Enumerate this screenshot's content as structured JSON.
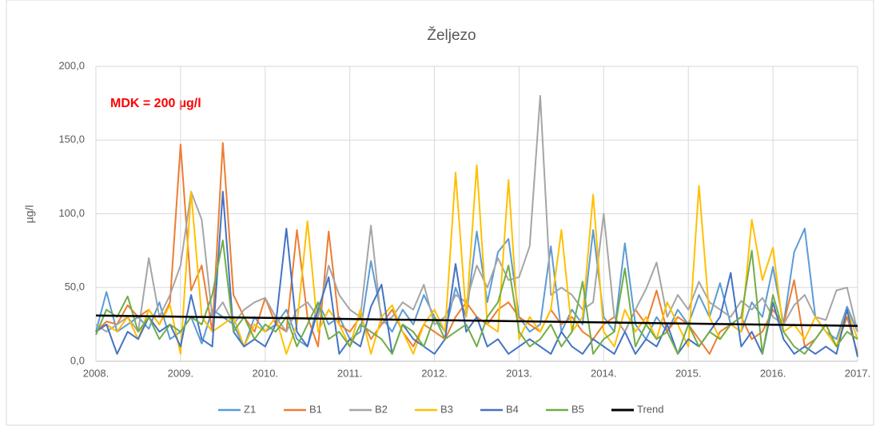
{
  "chart_data": {
    "type": "line",
    "title": "Željezo",
    "y_label": "µg/l",
    "annotation": "MDK = 200 µg/l",
    "grid": true,
    "legend": "bottom",
    "xlim": [
      2008,
      2017
    ],
    "xticks": [
      {
        "value": 2008,
        "label": "2008."
      },
      {
        "value": 2009,
        "label": "2009."
      },
      {
        "value": 2010,
        "label": "2010."
      },
      {
        "value": 2011,
        "label": "2011."
      },
      {
        "value": 2012,
        "label": "2012."
      },
      {
        "value": 2013,
        "label": "2013."
      },
      {
        "value": 2014,
        "label": "2014."
      },
      {
        "value": 2015,
        "label": "2015."
      },
      {
        "value": 2016,
        "label": "2016."
      },
      {
        "value": 2017,
        "label": "2017."
      }
    ],
    "ylim": [
      0,
      200
    ],
    "yticks": [
      {
        "value": 0,
        "label": "0,0"
      },
      {
        "value": 50,
        "label": "50,0"
      },
      {
        "value": 100,
        "label": "100,0"
      },
      {
        "value": 150,
        "label": "150,0"
      },
      {
        "value": 200,
        "label": "200,0"
      }
    ],
    "x": [
      2008,
      2008.125,
      2008.25,
      2008.375,
      2008.5,
      2008.625,
      2008.75,
      2008.875,
      2009,
      2009.125,
      2009.25,
      2009.375,
      2009.5,
      2009.625,
      2009.75,
      2009.875,
      2010,
      2010.125,
      2010.25,
      2010.375,
      2010.5,
      2010.625,
      2010.75,
      2010.875,
      2011,
      2011.125,
      2011.25,
      2011.375,
      2011.5,
      2011.625,
      2011.75,
      2011.875,
      2012,
      2012.125,
      2012.25,
      2012.375,
      2012.5,
      2012.625,
      2012.75,
      2012.875,
      2013,
      2013.125,
      2013.25,
      2013.375,
      2013.5,
      2013.625,
      2013.75,
      2013.875,
      2014,
      2014.125,
      2014.25,
      2014.375,
      2014.5,
      2014.625,
      2014.75,
      2014.875,
      2015,
      2015.125,
      2015.25,
      2015.375,
      2015.5,
      2015.625,
      2015.75,
      2015.875,
      2016,
      2016.125,
      2016.25,
      2016.375,
      2016.5,
      2016.625,
      2016.75,
      2016.875,
      2017
    ],
    "series": [
      {
        "name": "Z1",
        "color": "#5b9bd5",
        "values": [
          20,
          47,
          20,
          25,
          30,
          22,
          40,
          15,
          20,
          30,
          12,
          35,
          30,
          25,
          10,
          30,
          20,
          25,
          35,
          15,
          10,
          40,
          25,
          30,
          15,
          20,
          68,
          30,
          20,
          35,
          25,
          45,
          30,
          20,
          50,
          30,
          88,
          40,
          74,
          83,
          30,
          20,
          25,
          78,
          20,
          35,
          25,
          89,
          30,
          20,
          80,
          25,
          15,
          30,
          20,
          35,
          25,
          45,
          30,
          53,
          25,
          20,
          40,
          30,
          64,
          25,
          74,
          90,
          30,
          20,
          15,
          37,
          20
        ]
      },
      {
        "name": "B1",
        "color": "#ed7d31",
        "values": [
          20,
          27,
          25,
          38,
          30,
          35,
          25,
          40,
          147,
          48,
          65,
          20,
          148,
          45,
          30,
          20,
          43,
          25,
          20,
          89,
          30,
          10,
          88,
          25,
          20,
          30,
          15,
          25,
          35,
          20,
          10,
          25,
          20,
          15,
          30,
          40,
          30,
          25,
          35,
          40,
          30,
          25,
          20,
          35,
          25,
          30,
          20,
          15,
          25,
          30,
          20,
          35,
          25,
          48,
          20,
          30,
          25,
          15,
          5,
          20,
          25,
          30,
          15,
          20,
          35,
          25,
          55,
          10,
          15,
          25,
          10,
          30,
          5
        ]
      },
      {
        "name": "B2",
        "color": "#a5a5a5",
        "values": [
          25,
          20,
          25,
          30,
          20,
          70,
          30,
          45,
          65,
          115,
          96,
          30,
          40,
          25,
          35,
          40,
          43,
          30,
          20,
          35,
          40,
          30,
          65,
          45,
          35,
          30,
          92,
          25,
          30,
          40,
          35,
          52,
          25,
          30,
          45,
          40,
          65,
          50,
          70,
          55,
          57,
          78,
          180,
          45,
          50,
          45,
          35,
          40,
          100,
          30,
          20,
          35,
          49,
          67,
          30,
          45,
          35,
          54,
          40,
          35,
          30,
          41,
          35,
          43,
          30,
          25,
          38,
          45,
          30,
          28,
          48,
          50,
          20
        ]
      },
      {
        "name": "B3",
        "color": "#ffc000",
        "values": [
          20,
          25,
          20,
          30,
          15,
          35,
          25,
          38,
          5,
          115,
          30,
          20,
          25,
          30,
          10,
          25,
          20,
          30,
          5,
          25,
          95,
          20,
          35,
          25,
          10,
          35,
          5,
          30,
          38,
          20,
          5,
          25,
          35,
          20,
          128,
          30,
          133,
          25,
          20,
          123,
          15,
          30,
          20,
          35,
          89,
          20,
          30,
          113,
          20,
          10,
          35,
          20,
          30,
          15,
          40,
          25,
          10,
          119,
          30,
          15,
          25,
          20,
          96,
          55,
          77,
          20,
          25,
          15,
          30,
          20,
          10,
          35,
          15
        ]
      },
      {
        "name": "B4",
        "color": "#4472c4",
        "values": [
          20,
          25,
          5,
          20,
          15,
          30,
          20,
          25,
          10,
          45,
          15,
          10,
          115,
          20,
          10,
          15,
          10,
          25,
          90,
          20,
          10,
          35,
          57,
          5,
          15,
          10,
          37,
          52,
          5,
          25,
          15,
          10,
          5,
          15,
          66,
          20,
          30,
          10,
          15,
          5,
          10,
          15,
          10,
          5,
          20,
          10,
          5,
          15,
          10,
          5,
          20,
          5,
          15,
          10,
          25,
          5,
          15,
          10,
          20,
          30,
          60,
          10,
          20,
          5,
          40,
          15,
          5,
          10,
          5,
          10,
          5,
          35,
          3
        ]
      },
      {
        "name": "B5",
        "color": "#70ad47",
        "values": [
          18,
          35,
          30,
          44,
          20,
          30,
          15,
          25,
          20,
          30,
          25,
          45,
          82,
          20,
          30,
          15,
          25,
          20,
          30,
          10,
          25,
          40,
          15,
          20,
          10,
          25,
          20,
          15,
          5,
          25,
          20,
          10,
          30,
          15,
          20,
          25,
          10,
          30,
          40,
          65,
          20,
          10,
          15,
          25,
          10,
          20,
          54,
          5,
          15,
          20,
          63,
          10,
          25,
          15,
          20,
          5,
          25,
          10,
          20,
          15,
          25,
          30,
          75,
          5,
          45,
          20,
          10,
          5,
          15,
          25,
          10,
          20,
          15
        ]
      },
      {
        "name": "Trend",
        "color": "#000000",
        "x": [
          2008,
          2017
        ],
        "values": [
          31,
          24
        ]
      }
    ]
  }
}
